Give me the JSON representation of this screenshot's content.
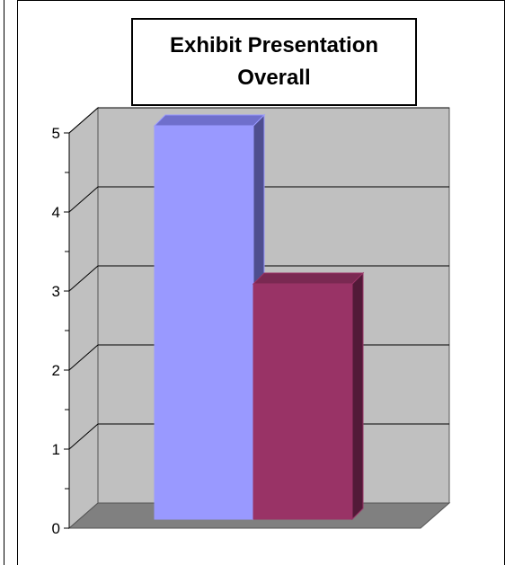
{
  "chart_data": {
    "type": "bar",
    "title": "Exhibit Presentation Overall",
    "categories": [
      "",
      ""
    ],
    "values": [
      5,
      3
    ],
    "xlabel": "",
    "ylabel": "",
    "ylim": [
      0,
      5
    ],
    "yticks": [
      "0",
      "1",
      "2",
      "3",
      "4",
      "5"
    ],
    "grid": true,
    "legend": "none",
    "style": "3d",
    "colors": {
      "bar1_front": "#9999ff",
      "bar1_top": "#6f6fcc",
      "bar1_side": "#4e4e8f",
      "bar2_front": "#993366",
      "bar2_top": "#7a2952",
      "bar2_side": "#521a38",
      "wall": "#c0c0c0",
      "floor": "#808080"
    }
  }
}
